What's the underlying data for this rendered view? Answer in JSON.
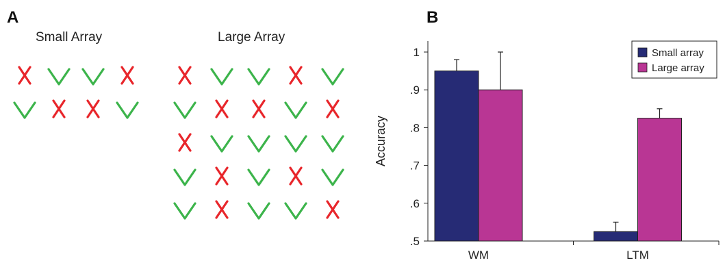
{
  "panel_a": {
    "letter": "A",
    "small_array": {
      "title": "Small Array",
      "columns": 4,
      "symbols": [
        "cross",
        "check",
        "check",
        "cross",
        "check",
        "cross",
        "cross",
        "check"
      ]
    },
    "large_array": {
      "title": "Large Array",
      "columns": 5,
      "symbols": [
        "cross",
        "check",
        "check",
        "cross",
        "check",
        "check",
        "cross",
        "cross",
        "check",
        "cross",
        "cross",
        "check",
        "check",
        "check",
        "check",
        "check",
        "cross",
        "check",
        "cross",
        "check",
        "check",
        "cross",
        "check",
        "check",
        "cross"
      ]
    },
    "colors": {
      "check": "#3cb44b",
      "cross": "#e8262b"
    },
    "icon_names": {
      "check": "check-icon",
      "cross": "cross-icon"
    }
  },
  "panel_b": {
    "letter": "B"
  },
  "chart_data": {
    "type": "bar",
    "categories": [
      "WM",
      "LTM"
    ],
    "series": [
      {
        "name": "Small array",
        "values": [
          0.95,
          0.525
        ],
        "errors": [
          0.03,
          0.025
        ],
        "color": "#262b75"
      },
      {
        "name": "Large array",
        "values": [
          0.9,
          0.825
        ],
        "errors": [
          0.1,
          0.025
        ],
        "color": "#b93694"
      }
    ],
    "ylabel": "Accuracy",
    "xlabel": "",
    "ylim": [
      0.5,
      1.0
    ],
    "yticks": [
      0.5,
      0.6,
      0.7,
      0.8,
      0.9,
      1.0
    ],
    "ytick_labels": [
      ".5",
      ".6",
      ".7",
      ".8",
      ".9",
      "1"
    ],
    "grid": false,
    "legend_position": "top-right"
  }
}
